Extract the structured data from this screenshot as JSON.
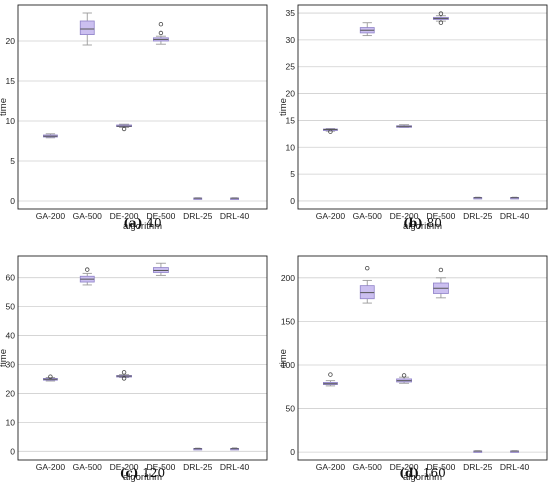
{
  "chart_data": [
    {
      "type": "box",
      "panel_label": "(a)",
      "caption": "40",
      "xlabel": "algorithm",
      "ylabel": "time",
      "ylim": [
        -1,
        24.5
      ],
      "yticks": [
        0,
        5,
        10,
        15,
        20
      ],
      "grid": true,
      "categories": [
        "GA-200",
        "GA-500",
        "DE-200",
        "DE-500",
        "DRL-25",
        "DRL-40"
      ],
      "boxes": [
        {
          "min": 7.9,
          "q1": 8.0,
          "median": 8.1,
          "q3": 8.25,
          "max": 8.4,
          "outliers": []
        },
        {
          "min": 19.5,
          "q1": 20.8,
          "median": 21.5,
          "q3": 22.5,
          "max": 23.5,
          "outliers": []
        },
        {
          "min": 9.2,
          "q1": 9.3,
          "median": 9.35,
          "q3": 9.5,
          "max": 9.6,
          "outliers": [
            9.0
          ]
        },
        {
          "min": 19.6,
          "q1": 20.0,
          "median": 20.2,
          "q3": 20.4,
          "max": 20.6,
          "outliers": [
            21.0,
            22.1
          ]
        },
        {
          "min": 0.3,
          "q1": 0.33,
          "median": 0.35,
          "q3": 0.38,
          "max": 0.4,
          "outliers": []
        },
        {
          "min": 0.3,
          "q1": 0.33,
          "median": 0.35,
          "q3": 0.37,
          "max": 0.4,
          "outliers": []
        }
      ]
    },
    {
      "type": "box",
      "panel_label": "(b)",
      "caption": "80",
      "xlabel": "algorithm",
      "ylabel": "time",
      "ylim": [
        -1.5,
        36.5
      ],
      "yticks": [
        0,
        5,
        10,
        15,
        20,
        25,
        30,
        35
      ],
      "grid": true,
      "categories": [
        "GA-200",
        "GA-500",
        "DE-200",
        "DE-500",
        "DRL-25",
        "DRL-40"
      ],
      "boxes": [
        {
          "min": 13.0,
          "q1": 13.2,
          "median": 13.3,
          "q3": 13.4,
          "max": 13.5,
          "outliers": [
            12.9
          ]
        },
        {
          "min": 30.8,
          "q1": 31.3,
          "median": 31.8,
          "q3": 32.3,
          "max": 33.2,
          "outliers": []
        },
        {
          "min": 13.7,
          "q1": 13.8,
          "median": 13.9,
          "q3": 14.0,
          "max": 14.2,
          "outliers": []
        },
        {
          "min": 33.5,
          "q1": 33.8,
          "median": 34.0,
          "q3": 34.2,
          "max": 34.5,
          "outliers": [
            33.2,
            34.9
          ]
        },
        {
          "min": 0.5,
          "q1": 0.55,
          "median": 0.6,
          "q3": 0.65,
          "max": 0.7,
          "outliers": []
        },
        {
          "min": 0.5,
          "q1": 0.55,
          "median": 0.6,
          "q3": 0.65,
          "max": 0.7,
          "outliers": []
        }
      ]
    },
    {
      "type": "box",
      "panel_label": "(c)",
      "caption": "120",
      "xlabel": "algorithm",
      "ylabel": "time",
      "ylim": [
        -3,
        67.5
      ],
      "yticks": [
        0,
        10,
        20,
        30,
        40,
        50,
        60
      ],
      "grid": true,
      "categories": [
        "GA-200",
        "GA-500",
        "DE-200",
        "DE-500",
        "DRL-25",
        "DRL-40"
      ],
      "boxes": [
        {
          "min": 24.3,
          "q1": 24.6,
          "median": 24.9,
          "q3": 25.2,
          "max": 25.5,
          "outliers": [
            25.8
          ]
        },
        {
          "min": 57.5,
          "q1": 58.5,
          "median": 59.5,
          "q3": 60.5,
          "max": 61.5,
          "outliers": [
            62.8
          ]
        },
        {
          "min": 25.5,
          "q1": 25.8,
          "median": 26.0,
          "q3": 26.2,
          "max": 26.5,
          "outliers": [
            27.3,
            25.2
          ]
        },
        {
          "min": 60.8,
          "q1": 61.8,
          "median": 62.5,
          "q3": 63.5,
          "max": 65.0,
          "outliers": []
        },
        {
          "min": 0.7,
          "q1": 0.8,
          "median": 0.9,
          "q3": 1.0,
          "max": 1.1,
          "outliers": []
        },
        {
          "min": 0.6,
          "q1": 0.8,
          "median": 0.9,
          "q3": 1.0,
          "max": 1.2,
          "outliers": []
        }
      ]
    },
    {
      "type": "box",
      "panel_label": "(d)",
      "caption": "160",
      "xlabel": "algorithm",
      "ylabel": "time",
      "ylim": [
        -9,
        225
      ],
      "yticks": [
        0,
        50,
        100,
        150,
        200
      ],
      "grid": true,
      "categories": [
        "GA-200",
        "GA-500",
        "DE-200",
        "DE-500",
        "DRL-25",
        "DRL-40"
      ],
      "boxes": [
        {
          "min": 76,
          "q1": 77.5,
          "median": 78.5,
          "q3": 80,
          "max": 82,
          "outliers": [
            89
          ]
        },
        {
          "min": 171,
          "q1": 176,
          "median": 183,
          "q3": 191,
          "max": 197,
          "outliers": [
            211
          ]
        },
        {
          "min": 79,
          "q1": 80.5,
          "median": 82,
          "q3": 84,
          "max": 86,
          "outliers": [
            88
          ]
        },
        {
          "min": 177,
          "q1": 182,
          "median": 188,
          "q3": 194,
          "max": 200,
          "outliers": [
            209
          ]
        },
        {
          "min": 0.8,
          "q1": 1.0,
          "median": 1.2,
          "q3": 1.4,
          "max": 1.6,
          "outliers": []
        },
        {
          "min": 0.8,
          "q1": 1.0,
          "median": 1.2,
          "q3": 1.4,
          "max": 1.6,
          "outliers": []
        }
      ]
    }
  ],
  "colors": {
    "box_fill": "#cbbff0",
    "box_stroke": "#8f82c8",
    "whisker": "#9a9a9a",
    "grid": "#cfcfcf",
    "frame": "#222222"
  }
}
